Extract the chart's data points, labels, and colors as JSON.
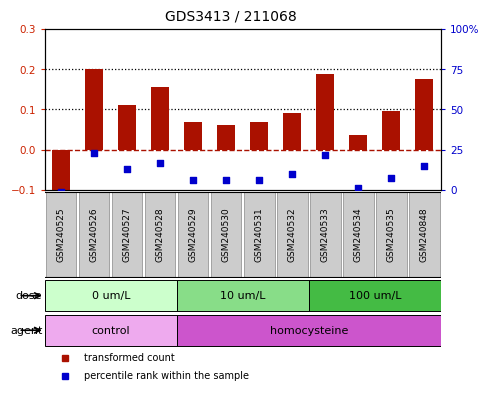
{
  "title": "GDS3413 / 211068",
  "samples": [
    "GSM240525",
    "GSM240526",
    "GSM240527",
    "GSM240528",
    "GSM240529",
    "GSM240530",
    "GSM240531",
    "GSM240532",
    "GSM240533",
    "GSM240534",
    "GSM240535",
    "GSM240848"
  ],
  "transformed_count": [
    -0.1,
    0.2,
    0.11,
    0.155,
    0.07,
    0.062,
    0.068,
    0.09,
    0.188,
    0.036,
    0.095,
    0.175
  ],
  "percentile_rank_pct": [
    -1.0,
    23.0,
    13.0,
    17.0,
    6.5,
    6.5,
    6.5,
    10.0,
    22.0,
    1.5,
    7.5,
    15.0
  ],
  "red_bar_color": "#aa1100",
  "blue_dot_color": "#0000cc",
  "ylim_left": [
    -0.1,
    0.3
  ],
  "ylim_right": [
    0,
    100
  ],
  "yticks_left": [
    -0.1,
    0.0,
    0.1,
    0.2,
    0.3
  ],
  "yticks_right": [
    0,
    25,
    50,
    75,
    100
  ],
  "ytick_labels_right": [
    "0",
    "25",
    "50",
    "75",
    "100%"
  ],
  "hlines": [
    0.1,
    0.2
  ],
  "dose_groups": [
    {
      "label": "0 um/L",
      "start": 0,
      "end": 4,
      "color": "#ccffcc"
    },
    {
      "label": "10 um/L",
      "start": 4,
      "end": 8,
      "color": "#88dd88"
    },
    {
      "label": "100 um/L",
      "start": 8,
      "end": 12,
      "color": "#44bb44"
    }
  ],
  "agent_groups": [
    {
      "label": "control",
      "start": 0,
      "end": 4,
      "color": "#eeaaee"
    },
    {
      "label": "homocysteine",
      "start": 4,
      "end": 12,
      "color": "#cc55cc"
    }
  ],
  "dose_label": "dose",
  "agent_label": "agent",
  "legend_red": "transformed count",
  "legend_blue": "percentile rank within the sample",
  "bar_width": 0.55,
  "background_color": "#ffffff",
  "axis_label_color_left": "#cc2200",
  "axis_label_color_right": "#0000cc",
  "sample_cell_color": "#cccccc",
  "title_fontsize": 10,
  "label_fontsize": 8,
  "tick_fontsize": 7.5
}
